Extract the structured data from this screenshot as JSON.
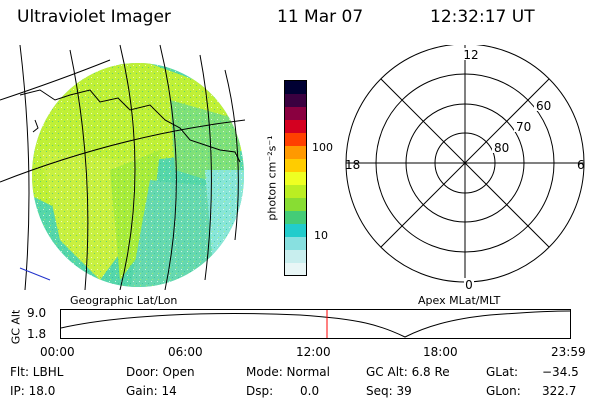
{
  "header": {
    "title": "Ultraviolet Imager",
    "date": "11 Mar 07",
    "time": "12:32:17 UT"
  },
  "colorbar": {
    "label": "photon cm⁻²s⁻¹",
    "tick_100": "100",
    "tick_10": "10",
    "colors": [
      "#000033",
      "#3a0040",
      "#8a0040",
      "#d40020",
      "#ff4000",
      "#ff9900",
      "#ffcc00",
      "#eeff22",
      "#bbee22",
      "#88dd33",
      "#44cc77",
      "#22cccc",
      "#88e0e0",
      "#c8eeee",
      "#e8f6f6"
    ]
  },
  "polar": {
    "mlt_12": "12",
    "mlt_18": "18",
    "mlt_6": "6",
    "mlt_0": "0",
    "lat_60": "60",
    "lat_70": "70",
    "lat_80": "80"
  },
  "panel_labels": {
    "geographic": "Geographic Lat/Lon",
    "apex": "Apex MLat/MLT"
  },
  "altitude_plot": {
    "axis_label": "GC Alt",
    "y_max": "9.0",
    "y_min": "1.8",
    "x_ticks": [
      "00:00",
      "06:00",
      "12:00",
      "18:00",
      "23:59"
    ],
    "marker_time": "12:32",
    "marker_color": "#ff0000"
  },
  "status": {
    "flt": "Flt: LBHL",
    "ip": "IP: 18.0",
    "door": "Door: Open",
    "gain": "Gain: 14",
    "mode": "Mode: Normal",
    "dsp_label": "Dsp:",
    "dsp_value": "0.0",
    "gc_alt": "GC Alt: 6.8 Re",
    "seq": "Seq: 39",
    "glat_label": "GLat:",
    "glat_value": "−34.5",
    "glon_label": "GLon:",
    "glon_value": "322.7"
  }
}
